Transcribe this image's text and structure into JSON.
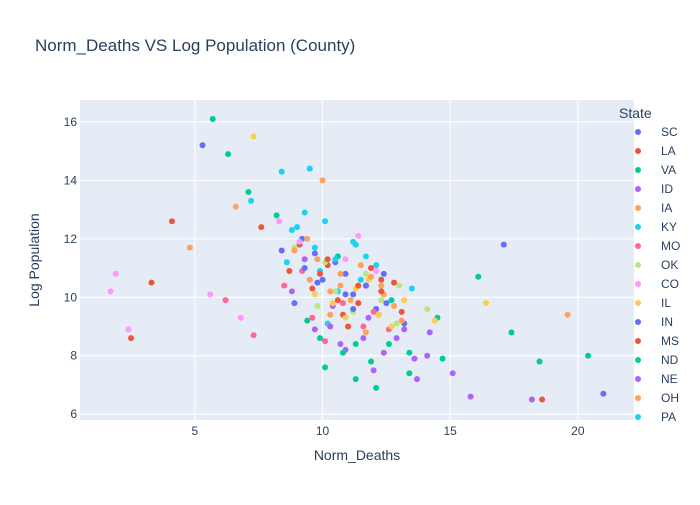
{
  "chart_data": {
    "type": "scatter",
    "title": "Norm_Deaths VS Log Population (County)",
    "xlabel": "Norm_Deaths",
    "ylabel": "Log Population",
    "xlim": [
      0.5,
      22.2
    ],
    "ylim": [
      5.8,
      16.75
    ],
    "x_ticks": [
      5,
      10,
      15,
      20
    ],
    "y_ticks": [
      6,
      8,
      10,
      12,
      14,
      16
    ],
    "grid": true,
    "legend_title": "State",
    "legend_position": "right",
    "series": [
      {
        "name": "SC",
        "color": "#636efa",
        "points": [
          [
            9.8,
            10.5
          ],
          [
            10.5,
            11.2
          ],
          [
            8.9,
            9.8
          ],
          [
            11.2,
            10.1
          ],
          [
            12.1,
            9.6
          ],
          [
            9.2,
            12.0
          ],
          [
            10.9,
            10.8
          ],
          [
            8.4,
            11.6
          ],
          [
            13.2,
            9.1
          ],
          [
            11.7,
            10.4
          ]
        ]
      },
      {
        "name": "LA",
        "color": "#EF553B",
        "points": [
          [
            10.2,
            11.1
          ],
          [
            9.6,
            10.3
          ],
          [
            11.4,
            9.8
          ],
          [
            8.7,
            10.9
          ],
          [
            12.3,
            10.6
          ],
          [
            10.8,
            9.4
          ],
          [
            9.1,
            11.8
          ],
          [
            11.9,
            11.0
          ],
          [
            3.3,
            10.5
          ],
          [
            7.6,
            12.4
          ]
        ]
      },
      {
        "name": "VA",
        "color": "#00cc96",
        "points": [
          [
            5.7,
            16.1
          ],
          [
            6.3,
            14.9
          ],
          [
            7.1,
            13.6
          ],
          [
            9.4,
            9.2
          ],
          [
            11.3,
            8.4
          ],
          [
            12.7,
            9.9
          ],
          [
            10.1,
            7.6
          ],
          [
            14.5,
            9.3
          ],
          [
            8.2,
            12.8
          ],
          [
            10.6,
            11.4
          ],
          [
            16.1,
            10.7
          ],
          [
            13.4,
            8.1
          ]
        ]
      },
      {
        "name": "ID",
        "color": "#ab63fa",
        "points": [
          [
            9.7,
            8.9
          ],
          [
            10.4,
            9.7
          ],
          [
            11.8,
            9.3
          ],
          [
            12.9,
            8.6
          ],
          [
            8.8,
            10.2
          ],
          [
            13.6,
            7.9
          ],
          [
            10.9,
            8.2
          ],
          [
            14.2,
            8.8
          ],
          [
            9.3,
            11.3
          ],
          [
            15.1,
            7.4
          ]
        ]
      },
      {
        "name": "IA",
        "color": "#FFA15A",
        "points": [
          [
            10.3,
            9.4
          ],
          [
            11.1,
            9.9
          ],
          [
            12.4,
            10.1
          ],
          [
            9.5,
            10.6
          ],
          [
            13.1,
            9.2
          ],
          [
            11.7,
            8.8
          ],
          [
            10.7,
            10.4
          ],
          [
            12.8,
            9.7
          ],
          [
            10.0,
            14.0
          ],
          [
            19.6,
            9.4
          ]
        ]
      },
      {
        "name": "KY",
        "color": "#19d3f3",
        "points": [
          [
            9.9,
            10.9
          ],
          [
            10.6,
            10.2
          ],
          [
            11.5,
            10.6
          ],
          [
            8.6,
            11.2
          ],
          [
            12.2,
            9.4
          ],
          [
            10.2,
            9.1
          ],
          [
            9.0,
            12.4
          ],
          [
            13.5,
            10.3
          ],
          [
            9.5,
            14.4
          ],
          [
            11.3,
            11.8
          ]
        ]
      },
      {
        "name": "MO",
        "color": "#FF6692",
        "points": [
          [
            9.6,
            9.3
          ],
          [
            10.8,
            9.8
          ],
          [
            11.6,
            9.0
          ],
          [
            8.5,
            10.4
          ],
          [
            12.6,
            8.9
          ],
          [
            10.1,
            8.5
          ],
          [
            9.2,
            10.9
          ],
          [
            12.0,
            9.5
          ],
          [
            6.2,
            9.9
          ],
          [
            7.3,
            8.7
          ]
        ]
      },
      {
        "name": "OK",
        "color": "#B6E880",
        "points": [
          [
            10.5,
            10.2
          ],
          [
            11.2,
            9.5
          ],
          [
            12.3,
            9.9
          ],
          [
            9.8,
            9.7
          ],
          [
            13.0,
            10.4
          ],
          [
            11.7,
            10.8
          ],
          [
            10.1,
            11.2
          ],
          [
            12.9,
            9.1
          ],
          [
            14.1,
            9.6
          ],
          [
            8.9,
            11.7
          ]
        ]
      },
      {
        "name": "CO",
        "color": "#FF97FF",
        "points": [
          [
            1.7,
            10.2
          ],
          [
            1.9,
            10.8
          ],
          [
            2.4,
            8.9
          ],
          [
            9.1,
            11.9
          ],
          [
            10.9,
            11.3
          ],
          [
            12.1,
            10.9
          ],
          [
            8.3,
            12.6
          ],
          [
            11.4,
            12.1
          ],
          [
            5.6,
            10.1
          ],
          [
            6.8,
            9.3
          ]
        ]
      },
      {
        "name": "IL",
        "color": "#FECB52",
        "points": [
          [
            10.4,
            9.8
          ],
          [
            11.3,
            10.3
          ],
          [
            12.2,
            9.4
          ],
          [
            9.7,
            10.1
          ],
          [
            13.2,
            9.9
          ],
          [
            11.8,
            10.6
          ],
          [
            12.7,
            9.0
          ],
          [
            10.9,
            9.3
          ],
          [
            7.3,
            15.5
          ],
          [
            16.4,
            9.8
          ],
          [
            14.4,
            9.2
          ]
        ]
      },
      {
        "name": "IN",
        "color": "#636efa",
        "points": [
          [
            10.0,
            10.6
          ],
          [
            10.9,
            10.1
          ],
          [
            11.7,
            10.4
          ],
          [
            9.3,
            11.0
          ],
          [
            12.5,
            9.8
          ],
          [
            11.2,
            9.6
          ],
          [
            9.7,
            11.5
          ],
          [
            12.4,
            10.8
          ],
          [
            5.3,
            15.2
          ],
          [
            21.0,
            6.7
          ],
          [
            17.1,
            11.8
          ]
        ]
      },
      {
        "name": "MS",
        "color": "#EF553B",
        "points": [
          [
            10.6,
            9.9
          ],
          [
            11.4,
            10.4
          ],
          [
            12.3,
            10.2
          ],
          [
            9.9,
            10.8
          ],
          [
            13.1,
            9.5
          ],
          [
            11.0,
            9.0
          ],
          [
            10.2,
            11.3
          ],
          [
            12.8,
            10.5
          ],
          [
            2.5,
            8.6
          ],
          [
            4.1,
            12.6
          ],
          [
            18.6,
            6.5
          ]
        ]
      },
      {
        "name": "ND",
        "color": "#00cc96",
        "points": [
          [
            10.8,
            8.1
          ],
          [
            11.9,
            7.8
          ],
          [
            12.6,
            8.4
          ],
          [
            9.9,
            8.6
          ],
          [
            13.4,
            7.4
          ],
          [
            11.3,
            7.2
          ],
          [
            14.7,
            7.9
          ],
          [
            12.1,
            6.9
          ],
          [
            20.4,
            8.0
          ],
          [
            18.5,
            7.8
          ],
          [
            17.4,
            8.8
          ]
        ]
      },
      {
        "name": "NE",
        "color": "#ab63fa",
        "points": [
          [
            11.6,
            8.6
          ],
          [
            12.4,
            8.1
          ],
          [
            13.2,
            8.9
          ],
          [
            10.7,
            8.4
          ],
          [
            14.1,
            8.0
          ],
          [
            12.0,
            7.5
          ],
          [
            10.3,
            9.0
          ],
          [
            13.7,
            7.2
          ],
          [
            18.2,
            6.5
          ],
          [
            15.8,
            6.6
          ]
        ]
      },
      {
        "name": "OH",
        "color": "#FFA15A",
        "points": [
          [
            9.8,
            11.3
          ],
          [
            10.7,
            10.8
          ],
          [
            11.5,
            11.1
          ],
          [
            8.9,
            11.6
          ],
          [
            12.3,
            10.4
          ],
          [
            10.3,
            10.2
          ],
          [
            9.4,
            12.0
          ],
          [
            11.9,
            10.7
          ],
          [
            6.6,
            13.1
          ],
          [
            4.8,
            11.7
          ]
        ]
      },
      {
        "name": "PA",
        "color": "#19d3f3",
        "points": [
          [
            9.7,
            11.7
          ],
          [
            10.5,
            11.3
          ],
          [
            11.2,
            11.9
          ],
          [
            8.8,
            12.3
          ],
          [
            12.1,
            11.1
          ],
          [
            10.1,
            12.6
          ],
          [
            9.3,
            12.9
          ],
          [
            11.7,
            11.4
          ],
          [
            7.2,
            13.3
          ],
          [
            8.4,
            14.3
          ]
        ]
      }
    ]
  }
}
